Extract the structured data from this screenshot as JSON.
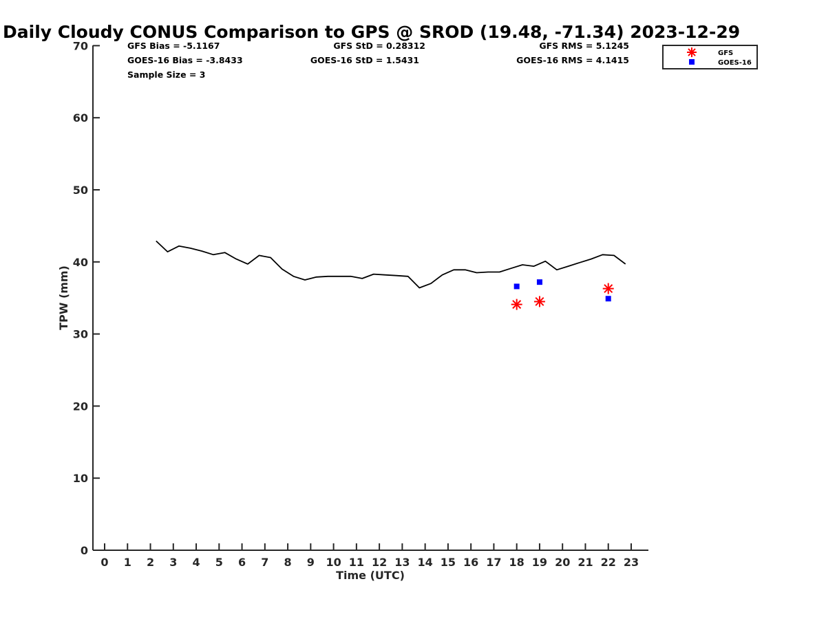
{
  "chart_data": {
    "type": "line",
    "title": "Daily Cloudy CONUS Comparison to GPS @ SROD (19.48, -71.34) 2023-12-29",
    "xlabel": "Time (UTC)",
    "ylabel": "TPW (mm)",
    "xlim": [
      -0.5,
      23.7
    ],
    "ylim": [
      0,
      70
    ],
    "x_ticks": [
      "0",
      "1",
      "2",
      "3",
      "4",
      "5",
      "6",
      "7",
      "8",
      "9",
      "10",
      "11",
      "12",
      "13",
      "14",
      "15",
      "16",
      "17",
      "18",
      "19",
      "20",
      "21",
      "22",
      "23"
    ],
    "y_ticks": [
      "0",
      "10",
      "20",
      "30",
      "40",
      "50",
      "60",
      "70"
    ],
    "grid": false,
    "legend_position": "top-right",
    "stats": [
      {
        "text": "GFS Bias = -5.1167"
      },
      {
        "text": "GFS StD = 0.28312"
      },
      {
        "text": "GFS RMS = 5.1245"
      },
      {
        "text": "GOES-16 Bias = -3.8433"
      },
      {
        "text": "GOES-16 StD = 1.5431"
      },
      {
        "text": "GOES-16 RMS = 4.1415"
      },
      {
        "text": "Sample Size = 3"
      }
    ],
    "series": [
      {
        "kind": "line",
        "color": "#000000",
        "x": [
          2.25,
          2.75,
          3.25,
          3.75,
          4.25,
          4.75,
          5.25,
          5.75,
          6.25,
          6.75,
          7.25,
          7.75,
          8.25,
          8.75,
          9.25,
          9.75,
          10.25,
          10.75,
          11.25,
          11.75,
          12.25,
          12.75,
          13.25,
          13.75,
          14.25,
          14.75,
          15.25,
          15.75,
          16.25,
          16.75,
          17.25,
          17.75,
          18.25,
          18.75,
          19.25,
          19.75,
          20.25,
          20.75,
          21.25,
          21.75,
          22.25,
          22.75
        ],
        "y": [
          42.9,
          41.4,
          42.2,
          41.9,
          41.5,
          41.0,
          41.3,
          40.4,
          39.7,
          40.9,
          40.6,
          39.0,
          38.0,
          37.5,
          37.9,
          38.0,
          38.0,
          38.0,
          37.7,
          38.3,
          38.2,
          38.1,
          38.0,
          36.4,
          37.0,
          38.2,
          38.9,
          38.9,
          38.5,
          38.6,
          38.6,
          39.1,
          39.6,
          39.4,
          40.1,
          38.9,
          39.4,
          39.9,
          40.4,
          41.0,
          40.9,
          39.7
        ]
      },
      {
        "name": "GFS",
        "kind": "scatter",
        "marker": "asterisk",
        "color": "#ff0000",
        "x": [
          18,
          19,
          22
        ],
        "y": [
          34.1,
          34.5,
          36.3
        ]
      },
      {
        "name": "GOES-16",
        "kind": "scatter",
        "marker": "square",
        "color": "#0000ff",
        "x": [
          18,
          19,
          22
        ],
        "y": [
          36.6,
          37.2,
          34.9
        ]
      }
    ]
  }
}
